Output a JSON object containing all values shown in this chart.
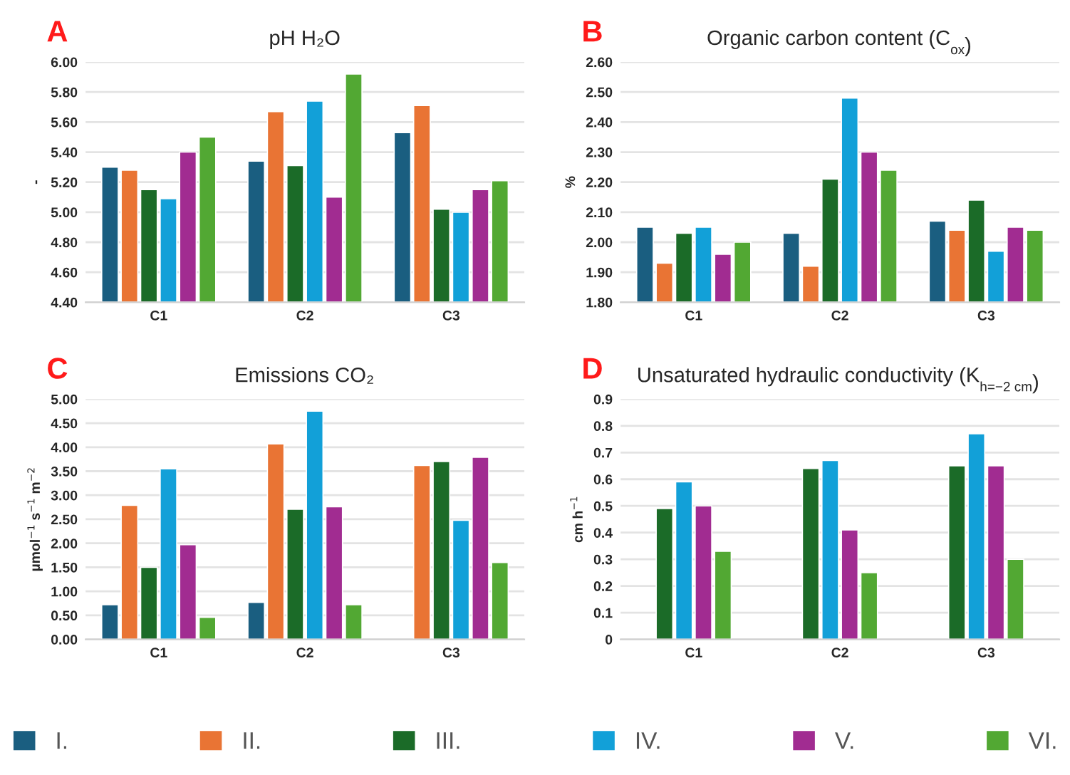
{
  "chart_data": [
    {
      "type": "bar",
      "title": "pH H₂O",
      "ylabel": "-",
      "annotations": [
        "A"
      ],
      "categories": [
        "C1",
        "C2",
        "C3"
      ],
      "grid": "y",
      "legend": "bottom",
      "ylim": [
        4.4,
        6.0
      ],
      "yticks": [
        {
          "value": 4.4,
          "label": "4.40"
        },
        {
          "value": 4.6,
          "label": "4.60"
        },
        {
          "value": 4.8,
          "label": "4.80"
        },
        {
          "value": 5.0,
          "label": "5.00"
        },
        {
          "value": 5.2,
          "label": "5.20"
        },
        {
          "value": 5.4,
          "label": "5.40"
        },
        {
          "value": 5.6,
          "label": "5.60"
        },
        {
          "value": 5.8,
          "label": "5.80"
        },
        {
          "value": 6.0,
          "label": "6.00"
        }
      ],
      "series": [
        {
          "name": "I.",
          "color": "#1a5e80",
          "values": [
            5.3,
            5.34,
            5.53
          ]
        },
        {
          "name": "II.",
          "color": "#e97434",
          "values": [
            5.28,
            5.67,
            5.71
          ]
        },
        {
          "name": "III.",
          "color": "#1b6b28",
          "values": [
            5.15,
            5.31,
            5.02
          ]
        },
        {
          "name": "IV.",
          "color": "#12a0d8",
          "values": [
            5.09,
            5.74,
            5.0
          ]
        },
        {
          "name": "V.",
          "color": "#a12c91",
          "values": [
            5.4,
            5.1,
            5.15
          ]
        },
        {
          "name": "VI.",
          "color": "#52a833",
          "values": [
            5.5,
            5.92,
            5.21
          ]
        }
      ]
    },
    {
      "type": "bar",
      "title": "Organic carbon content (C$_{ox}$)",
      "ylabel": "%",
      "annotations": [
        "B"
      ],
      "categories": [
        "C1",
        "C2",
        "C3"
      ],
      "grid": "y",
      "ylim": [
        1.8,
        2.6
      ],
      "yticks": [
        {
          "value": 1.8,
          "label": "1.80"
        },
        {
          "value": 1.9,
          "label": "1.90"
        },
        {
          "value": 2.0,
          "label": "2.00"
        },
        {
          "value": 2.1,
          "label": "2.10"
        },
        {
          "value": 2.2,
          "label": "2.20"
        },
        {
          "value": 2.3,
          "label": "2.30"
        },
        {
          "value": 2.4,
          "label": "2.40"
        },
        {
          "value": 2.5,
          "label": "2.50"
        },
        {
          "value": 2.6,
          "label": "2.60"
        }
      ],
      "series": [
        {
          "name": "I.",
          "color": "#1a5e80",
          "values": [
            2.05,
            2.03,
            2.07
          ]
        },
        {
          "name": "II.",
          "color": "#e97434",
          "values": [
            1.93,
            1.92,
            2.04
          ]
        },
        {
          "name": "III.",
          "color": "#1b6b28",
          "values": [
            2.03,
            2.21,
            2.14
          ]
        },
        {
          "name": "IV.",
          "color": "#12a0d8",
          "values": [
            2.05,
            2.48,
            1.97
          ]
        },
        {
          "name": "V.",
          "color": "#a12c91",
          "values": [
            1.96,
            2.3,
            2.05
          ]
        },
        {
          "name": "VI.",
          "color": "#52a833",
          "values": [
            2.0,
            2.24,
            2.04
          ]
        }
      ]
    },
    {
      "type": "bar",
      "title": "Emissions CO₂",
      "ylabel": "µmol$^{−1}$ s$^{−1}$ m$^{−2}$",
      "annotations": [
        "C"
      ],
      "categories": [
        "C1",
        "C2",
        "C3"
      ],
      "grid": "y",
      "ylim": [
        0,
        5.0
      ],
      "yticks": [
        {
          "value": 0,
          "label": "0.00"
        },
        {
          "value": 0.5,
          "label": "0.50"
        },
        {
          "value": 1.0,
          "label": "1.00"
        },
        {
          "value": 1.5,
          "label": "1.50"
        },
        {
          "value": 2.0,
          "label": "2.00"
        },
        {
          "value": 2.5,
          "label": "2.50"
        },
        {
          "value": 3.0,
          "label": "3.00"
        },
        {
          "value": 3.5,
          "label": "3.50"
        },
        {
          "value": 4.0,
          "label": "4.00"
        },
        {
          "value": 4.5,
          "label": "4.50"
        },
        {
          "value": 5.0,
          "label": "5.00"
        }
      ],
      "series": [
        {
          "name": "I.",
          "color": "#1a5e80",
          "values": [
            0.72,
            0.77,
            null
          ]
        },
        {
          "name": "II.",
          "color": "#e97434",
          "values": [
            2.79,
            4.07,
            3.62
          ]
        },
        {
          "name": "III.",
          "color": "#1b6b28",
          "values": [
            1.5,
            2.71,
            3.7
          ]
        },
        {
          "name": "IV.",
          "color": "#12a0d8",
          "values": [
            3.55,
            4.75,
            2.48
          ]
        },
        {
          "name": "V.",
          "color": "#a12c91",
          "values": [
            1.97,
            2.76,
            3.79
          ]
        },
        {
          "name": "VI.",
          "color": "#52a833",
          "values": [
            0.46,
            0.72,
            1.6
          ]
        }
      ]
    },
    {
      "type": "bar",
      "title": "Unsaturated hydraulic conductivity (K$_{h=−2 cm}$)",
      "ylabel": "cm h$^{−1}$",
      "annotations": [
        "D"
      ],
      "categories": [
        "C1",
        "C2",
        "C3"
      ],
      "grid": "y",
      "ylim": [
        0,
        0.9
      ],
      "yticks": [
        0,
        0.1,
        0.2,
        0.3,
        0.4,
        0.5,
        0.6,
        0.7,
        0.8,
        0.9
      ],
      "series": [
        {
          "name": "III.",
          "color": "#1b6b28",
          "values": [
            0.49,
            0.64,
            0.65
          ]
        },
        {
          "name": "IV.",
          "color": "#12a0d8",
          "values": [
            0.59,
            0.67,
            0.77
          ]
        },
        {
          "name": "V.",
          "color": "#a12c91",
          "values": [
            0.5,
            0.41,
            0.65
          ]
        },
        {
          "name": "VI.",
          "color": "#52a833",
          "values": [
            0.33,
            0.25,
            0.3
          ]
        }
      ]
    }
  ]
}
